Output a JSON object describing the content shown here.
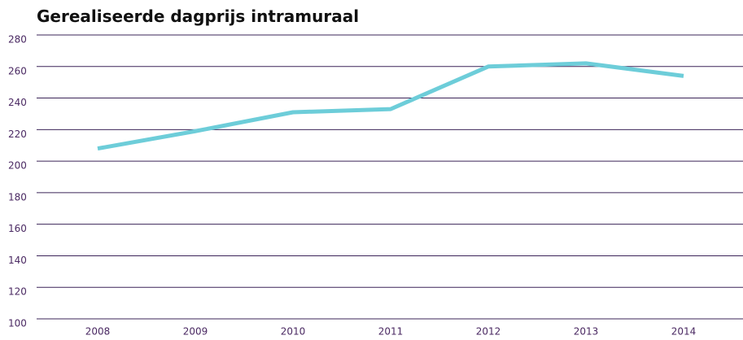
{
  "chart_data": {
    "type": "line",
    "title": "Gerealiseerde dagprijs intramuraal",
    "categories": [
      "2008",
      "2009",
      "2010",
      "2011",
      "2012",
      "2013",
      "2014"
    ],
    "values": [
      208,
      219,
      231,
      233,
      260,
      262,
      254
    ],
    "color": "#6dcdd9",
    "ylim": [
      100,
      280
    ],
    "yticks": [
      100,
      120,
      140,
      160,
      180,
      200,
      220,
      240,
      260,
      280
    ],
    "grid": true
  }
}
